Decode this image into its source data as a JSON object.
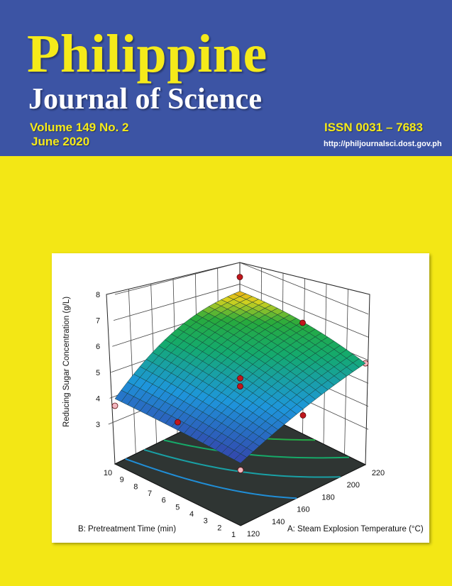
{
  "cover": {
    "journal_name_line1": "Philippine",
    "journal_name_line2": "Journal of Science",
    "volume": "Volume 149 No. 2",
    "date": "June 2020",
    "issn": "ISSN 0031 – 7683",
    "url": "http://philjournalsci.dost.gov.ph",
    "colors": {
      "header_bg": "#3c54a4",
      "title_yellow": "#f5ea1a",
      "page_bg": "#f3e715"
    }
  },
  "chart_data": {
    "type": "surface3d",
    "zlabel": "Reducing Sugar Concentration (g/L)",
    "xlabel": "A: Steam Explosion Temperature (°C)",
    "ylabel": "B: Pretreatment Time (min)",
    "x_ticks": [
      "120",
      "140",
      "160",
      "180",
      "200",
      "220"
    ],
    "y_ticks": [
      "1",
      "2",
      "3",
      "4",
      "5",
      "6",
      "7",
      "8",
      "9",
      "10"
    ],
    "z_ticks": [
      "3",
      "4",
      "5",
      "6",
      "7",
      "8"
    ],
    "xlim": [
      120,
      220
    ],
    "ylim": [
      1,
      10
    ],
    "zlim": [
      3,
      8
    ],
    "surface_corners": [
      {
        "A": 120,
        "B": 1,
        "z": 3.3
      },
      {
        "A": 220,
        "B": 1,
        "z": 5.3
      },
      {
        "A": 120,
        "B": 10,
        "z": 3.8
      },
      {
        "A": 220,
        "B": 10,
        "z": 7.8
      }
    ],
    "points_above": [
      {
        "A": 220,
        "B": 10,
        "z": 8.6
      },
      {
        "A": 220,
        "B": 5.5,
        "z": 6.5
      },
      {
        "A": 170,
        "B": 5.5,
        "z": 4.7
      },
      {
        "A": 170,
        "B": 5.5,
        "z": 4.4
      },
      {
        "A": 120,
        "B": 5.5,
        "z": 3.8
      },
      {
        "A": 170,
        "B": 1,
        "z": 4.1
      }
    ],
    "points_below": [
      {
        "A": 120,
        "B": 10,
        "z": 3.55
      },
      {
        "A": 220,
        "B": 1,
        "z": 5.3
      },
      {
        "A": 120,
        "B": 1,
        "z": 3.1
      }
    ],
    "floor_contours": [
      4.2,
      4.9,
      5.6,
      6.3
    ],
    "colors": {
      "point_above": "#c0161c",
      "point_below": "#f4b8c0",
      "floor": "#2f3533",
      "low": "#3a2c9c",
      "high": "#f29a10"
    }
  }
}
